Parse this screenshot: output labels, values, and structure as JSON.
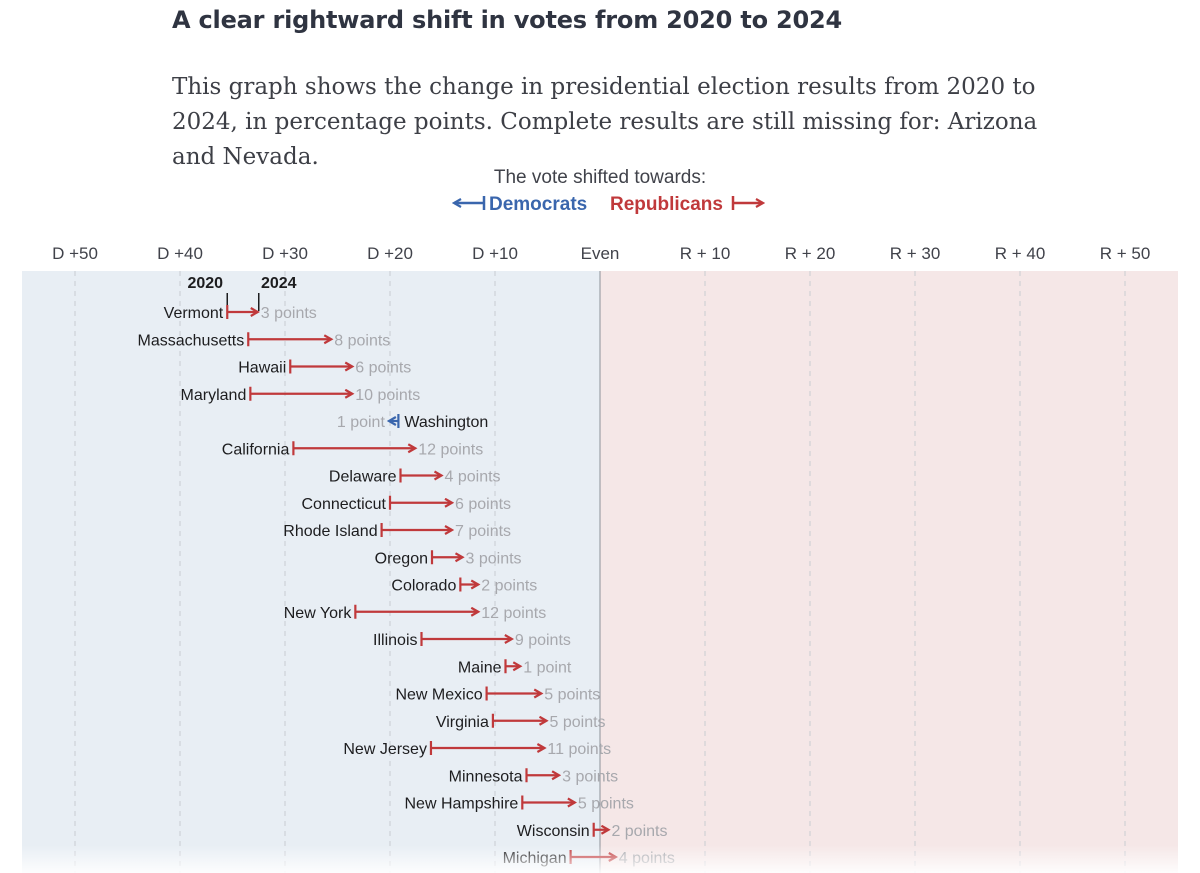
{
  "header": {
    "title": "A clear rightward shift in votes from 2020 to 2024",
    "subtitle": "This graph shows the change in presidential election results from 2020 to 2024, in percentage points. Complete results are still missing for: Arizona and Nevada."
  },
  "legend": {
    "caption": "The vote shifted towards:",
    "dem_label": "Democrats",
    "rep_label": "Republicans"
  },
  "colors": {
    "rep": "#c0393b",
    "dem": "#3a66ad",
    "dem_bg": "#e8eef4",
    "rep_bg": "#f5e7e7"
  },
  "chart_data": {
    "type": "dumbbell",
    "title": "A clear rightward shift in votes from 2020 to 2024",
    "xlim": [
      -55,
      55
    ],
    "axis_ticks": [
      {
        "value": -50,
        "label": "D +50"
      },
      {
        "value": -40,
        "label": "D +40"
      },
      {
        "value": -30,
        "label": "D +30"
      },
      {
        "value": -20,
        "label": "D +20"
      },
      {
        "value": -10,
        "label": "D +10"
      },
      {
        "value": 0,
        "label": "Even"
      },
      {
        "value": 10,
        "label": "R + 10"
      },
      {
        "value": 20,
        "label": "R + 20"
      },
      {
        "value": 30,
        "label": "R + 30"
      },
      {
        "value": 40,
        "label": "R + 40"
      },
      {
        "value": 50,
        "label": "R + 50"
      }
    ],
    "start_label": "2020",
    "end_label": "2024",
    "rows": [
      {
        "state": "Vermont",
        "from": -35.5,
        "to": -32.5,
        "shift": "3 points"
      },
      {
        "state": "Massachusetts",
        "from": -33.5,
        "to": -25.5,
        "shift": "8 points"
      },
      {
        "state": "Hawaii",
        "from": -29.5,
        "to": -23.5,
        "shift": "6 points"
      },
      {
        "state": "Maryland",
        "from": -33.3,
        "to": -23.5,
        "shift": "10 points"
      },
      {
        "state": "Washington",
        "from": -19.2,
        "to": -20.2,
        "shift": "1 point"
      },
      {
        "state": "California",
        "from": -29.2,
        "to": -17.5,
        "shift": "12 points"
      },
      {
        "state": "Delaware",
        "from": -19.0,
        "to": -15.0,
        "shift": "4 points"
      },
      {
        "state": "Connecticut",
        "from": -20.0,
        "to": -14.0,
        "shift": "6 points"
      },
      {
        "state": "Rhode Island",
        "from": -20.8,
        "to": -14.0,
        "shift": "7 points"
      },
      {
        "state": "Oregon",
        "from": -16.0,
        "to": -13.0,
        "shift": "3 points"
      },
      {
        "state": "Colorado",
        "from": -13.3,
        "to": -11.5,
        "shift": "2 points"
      },
      {
        "state": "New York",
        "from": -23.3,
        "to": -11.5,
        "shift": "12 points"
      },
      {
        "state": "Illinois",
        "from": -17.0,
        "to": -8.3,
        "shift": "9 points"
      },
      {
        "state": "Maine",
        "from": -9.0,
        "to": -7.5,
        "shift": "1 point"
      },
      {
        "state": "New Mexico",
        "from": -10.8,
        "to": -5.5,
        "shift": "5 points"
      },
      {
        "state": "Virginia",
        "from": -10.2,
        "to": -5.0,
        "shift": "5 points"
      },
      {
        "state": "New Jersey",
        "from": -16.1,
        "to": -5.2,
        "shift": "11 points"
      },
      {
        "state": "Minnesota",
        "from": -7.0,
        "to": -3.8,
        "shift": "3 points"
      },
      {
        "state": "New Hampshire",
        "from": -7.4,
        "to": -2.3,
        "shift": "5 points"
      },
      {
        "state": "Wisconsin",
        "from": -0.6,
        "to": 0.9,
        "shift": "2 points"
      },
      {
        "state": "Michigan",
        "from": -2.8,
        "to": 1.6,
        "shift": "4 points"
      }
    ]
  }
}
